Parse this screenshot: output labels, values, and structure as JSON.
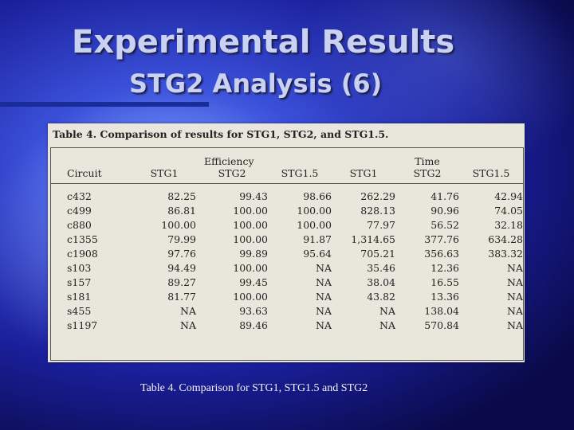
{
  "title": "Experimental Results",
  "subtitle": "STG2 Analysis (6)",
  "table": {
    "caption": "Table 4. Comparison of results for STG1, STG2, and STG1.5.",
    "group_efficiency": "Efficiency",
    "group_time": "Time",
    "headers": [
      "Circuit",
      "STG1",
      "STG2",
      "STG1.5",
      "STG1",
      "STG2",
      "STG1.5"
    ],
    "rows": [
      [
        "c432",
        "82.25",
        "99.43",
        "98.66",
        "262.29",
        "41.76",
        "42.94"
      ],
      [
        "c499",
        "86.81",
        "100.00",
        "100.00",
        "828.13",
        "90.96",
        "74.05"
      ],
      [
        "c880",
        "100.00",
        "100.00",
        "100.00",
        "77.97",
        "56.52",
        "32.18"
      ],
      [
        "c1355",
        "79.99",
        "100.00",
        "91.87",
        "1,314.65",
        "377.76",
        "634.28"
      ],
      [
        "c1908",
        "97.76",
        "99.89",
        "95.64",
        "705.21",
        "356.63",
        "383.32"
      ],
      [
        "s103",
        "94.49",
        "100.00",
        "NA",
        "35.46",
        "12.36",
        "NA"
      ],
      [
        "s157",
        "89.27",
        "99.45",
        "NA",
        "38.04",
        "16.55",
        "NA"
      ],
      [
        "s181",
        "81.77",
        "100.00",
        "NA",
        "43.82",
        "13.36",
        "NA"
      ],
      [
        "s455",
        "NA",
        "93.63",
        "NA",
        "NA",
        "138.04",
        "NA"
      ],
      [
        "s1197",
        "NA",
        "89.46",
        "NA",
        "NA",
        "570.84",
        "NA"
      ]
    ]
  },
  "footer": "Table 4. Comparison for STG1, STG1.5 and STG2"
}
